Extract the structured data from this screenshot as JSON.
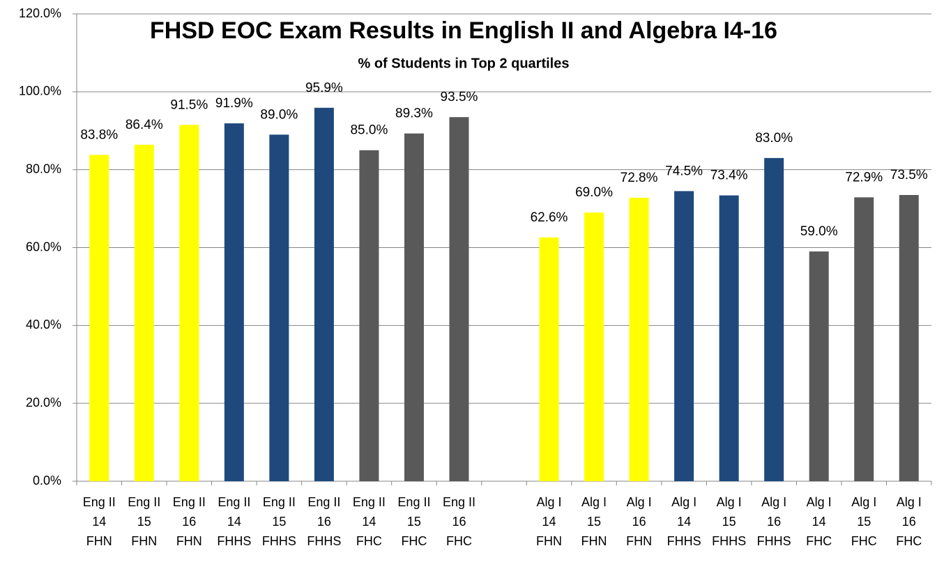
{
  "chart_data": {
    "type": "bar",
    "title": "FHSD EOC Exam Results in English II and Algebra I4-16",
    "subtitle": "% of Students in Top 2 quartiles",
    "categories": [
      [
        "Eng II",
        "14",
        "FHN"
      ],
      [
        "Eng II",
        "15",
        "FHN"
      ],
      [
        "Eng II",
        "16",
        "FHN"
      ],
      [
        "Eng II",
        "14",
        "FHHS"
      ],
      [
        "Eng II",
        "15",
        "FHHS"
      ],
      [
        "Eng II",
        "16",
        "FHHS"
      ],
      [
        "Eng II",
        "14",
        "FHC"
      ],
      [
        "Eng II",
        "15",
        "FHC"
      ],
      [
        "Eng II",
        "16",
        "FHC"
      ],
      null,
      [
        "Alg I",
        "14",
        "FHN"
      ],
      [
        "Alg I",
        "15",
        "FHN"
      ],
      [
        "Alg I",
        "16",
        "FHN"
      ],
      [
        "Alg I",
        "14",
        "FHHS"
      ],
      [
        "Alg I",
        "15",
        "FHHS"
      ],
      [
        "Alg I",
        "16",
        "FHHS"
      ],
      [
        "Alg I",
        "14",
        "FHC"
      ],
      [
        "Alg I",
        "15",
        "FHC"
      ],
      [
        "Alg I",
        "16",
        "FHC"
      ]
    ],
    "values": [
      83.8,
      86.4,
      91.5,
      91.9,
      89.0,
      95.9,
      85.0,
      89.3,
      93.5,
      null,
      62.6,
      69.0,
      72.8,
      74.5,
      73.4,
      83.0,
      59.0,
      72.9,
      73.5
    ],
    "value_labels": [
      "83.8%",
      "86.4%",
      "91.5%",
      "91.9%",
      "89.0%",
      "95.9%",
      "85.0%",
      "89.3%",
      "93.5%",
      null,
      "62.6%",
      "69.0%",
      "72.8%",
      "74.5%",
      "73.4%",
      "83.0%",
      "59.0%",
      "72.9%",
      "73.5%"
    ],
    "colors": [
      "#ffff00",
      "#ffff00",
      "#ffff00",
      "#1f497d",
      "#1f497d",
      "#1f497d",
      "#595959",
      "#595959",
      "#595959",
      null,
      "#ffff00",
      "#ffff00",
      "#ffff00",
      "#1f497d",
      "#1f497d",
      "#1f497d",
      "#595959",
      "#595959",
      "#595959"
    ],
    "ylim": [
      0,
      120
    ],
    "yticks": [
      {
        "value": 0,
        "label": "0.0%"
      },
      {
        "value": 20,
        "label": "20.0%"
      },
      {
        "value": 40,
        "label": "40.0%"
      },
      {
        "value": 60,
        "label": "60.0%"
      },
      {
        "value": 80,
        "label": "80.0%"
      },
      {
        "value": 100,
        "label": "100.0%"
      },
      {
        "value": 120,
        "label": "120.0%"
      }
    ],
    "grid": true
  }
}
